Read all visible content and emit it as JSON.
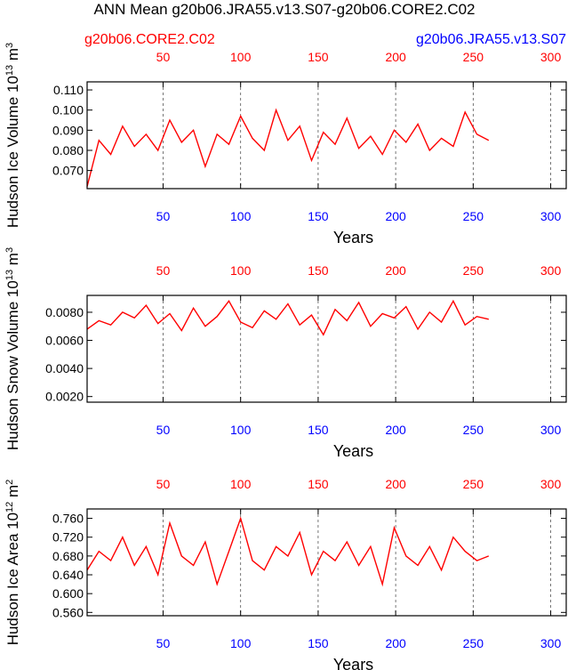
{
  "header": {
    "title": "ANN Mean g20b06.JRA55.v13.S07-g20b06.CORE2.C02",
    "legend_left": "g20b06.CORE2.C02",
    "legend_right": "g20b06.JRA55.v13.S07"
  },
  "colors": {
    "core2": "#ff0000",
    "jra55": "#0000ff",
    "axis": "#000000",
    "grid": "#555555"
  },
  "chart_data": [
    {
      "type": "line",
      "title": "ANN Mean g20b06.JRA55.v13.S07-g20b06.CORE2.C02",
      "ylabel": "Hudson Ice Volume",
      "yunit": "10",
      "yunit_exp": "13",
      "yunit_suffix": "m",
      "yunit_suffix_exp": "3",
      "xlabel": "Years",
      "ylim": [
        0.061,
        0.114
      ],
      "yticks": [
        0.07,
        0.08,
        0.09,
        0.1,
        0.11
      ],
      "ytick_labels": [
        "0.070",
        "0.080",
        "0.090",
        "0.100",
        "0.110"
      ],
      "xlim": [
        1,
        310
      ],
      "top_xticks": [
        50,
        100,
        150,
        200,
        250,
        300
      ],
      "bottom_xticks": [
        50,
        100,
        150,
        200,
        250,
        300
      ],
      "vlines": [
        50,
        100,
        150,
        200,
        250,
        300
      ],
      "series": [
        {
          "name": "g20b06.CORE2.C02",
          "color": "red",
          "x_start": 1,
          "x_end": 260,
          "values": [
            0.062,
            0.085,
            0.078,
            0.092,
            0.082,
            0.088,
            0.08,
            0.095,
            0.084,
            0.09,
            0.072,
            0.088,
            0.083,
            0.097,
            0.086,
            0.08,
            0.1,
            0.085,
            0.092,
            0.075,
            0.089,
            0.083,
            0.096,
            0.081,
            0.087,
            0.078,
            0.09,
            0.084,
            0.093,
            0.08,
            0.086,
            0.082,
            0.099,
            0.088,
            0.085
          ]
        }
      ]
    },
    {
      "type": "line",
      "ylabel": "Hudson Snow Volume",
      "yunit": "10",
      "yunit_exp": "13",
      "yunit_suffix": "m",
      "yunit_suffix_exp": "3",
      "xlabel": "Years",
      "ylim": [
        0.0016,
        0.0092
      ],
      "yticks": [
        0.002,
        0.004,
        0.006,
        0.008
      ],
      "ytick_labels": [
        "0.0020",
        "0.0040",
        "0.0060",
        "0.0080"
      ],
      "xlim": [
        1,
        310
      ],
      "top_xticks": [
        50,
        100,
        150,
        200,
        250,
        300
      ],
      "bottom_xticks": [
        50,
        100,
        150,
        200,
        250,
        300
      ],
      "vlines": [
        50,
        100,
        150,
        200,
        250,
        300
      ],
      "series": [
        {
          "name": "g20b06.CORE2.C02",
          "color": "red",
          "x_start": 1,
          "x_end": 260,
          "values": [
            0.0068,
            0.0074,
            0.0071,
            0.008,
            0.0076,
            0.0085,
            0.0072,
            0.0079,
            0.0067,
            0.0083,
            0.007,
            0.0077,
            0.0088,
            0.0073,
            0.0069,
            0.0081,
            0.0075,
            0.0086,
            0.0071,
            0.0078,
            0.0064,
            0.0082,
            0.0074,
            0.0087,
            0.007,
            0.0079,
            0.0076,
            0.0084,
            0.0068,
            0.008,
            0.0073,
            0.0088,
            0.0071,
            0.0077,
            0.0075
          ]
        }
      ]
    },
    {
      "type": "line",
      "ylabel": "Hudson Ice Area",
      "yunit": "10",
      "yunit_exp": "12",
      "yunit_suffix": "m",
      "yunit_suffix_exp": "2",
      "xlabel": "Years",
      "ylim": [
        0.553,
        0.78
      ],
      "yticks": [
        0.56,
        0.6,
        0.64,
        0.68,
        0.72,
        0.76
      ],
      "ytick_labels": [
        "0.560",
        "0.600",
        "0.640",
        "0.680",
        "0.720",
        "0.760"
      ],
      "xlim": [
        1,
        310
      ],
      "top_xticks": [
        50,
        100,
        150,
        200,
        250,
        300
      ],
      "bottom_xticks": [
        50,
        100,
        150,
        200,
        250,
        300
      ],
      "vlines": [
        50,
        100,
        150,
        200,
        250,
        300
      ],
      "series": [
        {
          "name": "g20b06.CORE2.C02",
          "color": "red",
          "x_start": 1,
          "x_end": 260,
          "values": [
            0.65,
            0.69,
            0.67,
            0.72,
            0.66,
            0.7,
            0.64,
            0.75,
            0.68,
            0.66,
            0.71,
            0.62,
            0.69,
            0.76,
            0.67,
            0.65,
            0.7,
            0.68,
            0.73,
            0.64,
            0.69,
            0.67,
            0.71,
            0.66,
            0.7,
            0.62,
            0.74,
            0.68,
            0.66,
            0.7,
            0.65,
            0.72,
            0.69,
            0.67,
            0.68
          ]
        }
      ]
    }
  ]
}
